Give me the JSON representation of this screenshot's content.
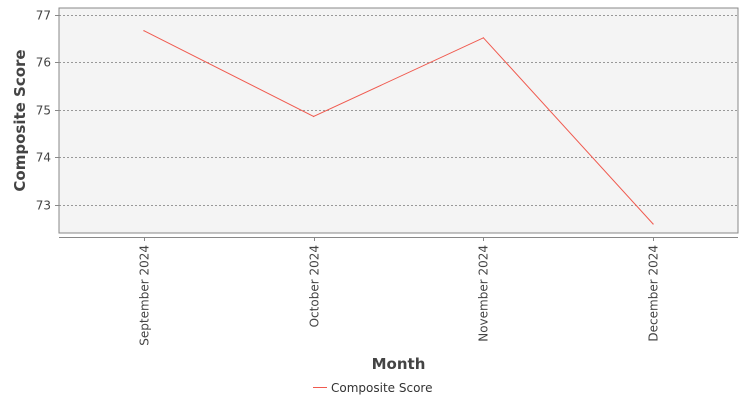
{
  "chart_data": {
    "type": "line",
    "title": "",
    "xlabel": "Month",
    "ylabel": "Composite Score",
    "categories": [
      "September 2024",
      "October 2024",
      "November 2024",
      "December 2024"
    ],
    "series": [
      {
        "name": "Composite Score",
        "values": [
          76.67,
          74.86,
          76.52,
          72.59
        ],
        "color": "#f05a4f"
      }
    ],
    "ylim": [
      72.4,
      77.15
    ],
    "yticks": [
      73,
      74,
      75,
      76,
      77
    ],
    "grid": "horizontal dashed",
    "legend_position": "bottom-center",
    "plot_background": "#f4f4f4"
  }
}
